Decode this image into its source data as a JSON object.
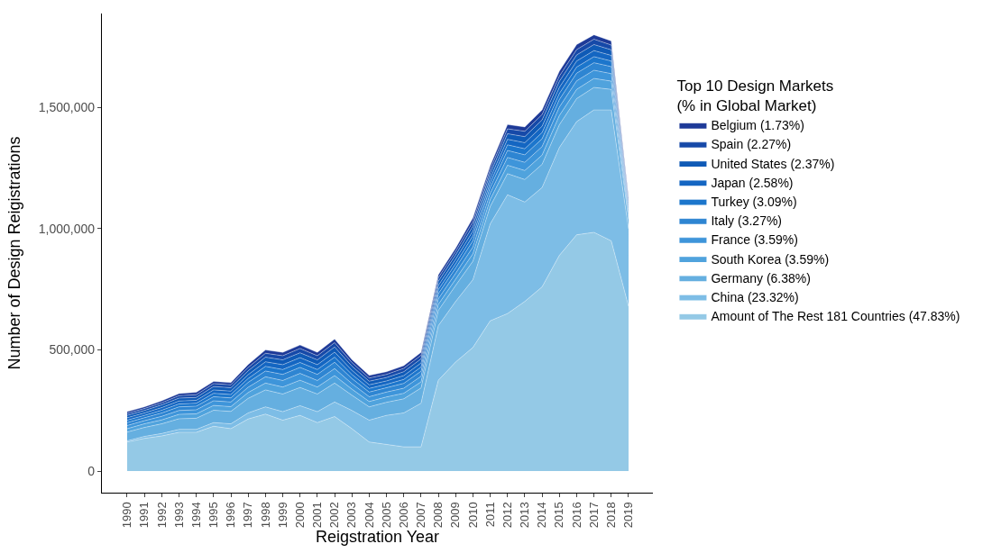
{
  "chart_data": {
    "type": "area",
    "stacked": true,
    "xlabel": "Reigstration Year",
    "ylabel": "Number of Design Reigistrations",
    "legend_title": "Top 10 Design Markets\n(% in Global Market)",
    "legend": "right",
    "marker": "none",
    "categories": [
      "1990",
      "1991",
      "1992",
      "1993",
      "1994",
      "1995",
      "1996",
      "1997",
      "1998",
      "1999",
      "2000",
      "2001",
      "2002",
      "2003",
      "2004",
      "2005",
      "2006",
      "2007",
      "2008",
      "2009",
      "2010",
      "2011",
      "2012",
      "2013",
      "2014",
      "2015",
      "2016",
      "2017",
      "2018",
      "2019"
    ],
    "ylim": [
      -89000,
      1888000
    ],
    "yticks": [
      {
        "value": 0,
        "label": "0"
      },
      {
        "value": 500000,
        "label": "500,000"
      },
      {
        "value": 1000000,
        "label": "1,000,000"
      },
      {
        "value": 1500000,
        "label": "1,500,000"
      }
    ],
    "series": [
      {
        "name": "Amount of The Rest 181 Countries (47.83%)",
        "color": "#94c9e6",
        "values": [
          120000,
          135000,
          145000,
          160000,
          160000,
          185000,
          175000,
          215000,
          235000,
          210000,
          230000,
          200000,
          225000,
          175000,
          120000,
          110000,
          100000,
          100000,
          375000,
          450000,
          510000,
          620000,
          650000,
          700000,
          760000,
          890000,
          975000,
          985000,
          950000,
          680000
        ]
      },
      {
        "name": "China (23.32%)",
        "color": "#7dbde6",
        "values": [
          5000,
          8000,
          10000,
          12000,
          12000,
          15000,
          20000,
          25000,
          30000,
          35000,
          40000,
          45000,
          60000,
          75000,
          90000,
          120000,
          140000,
          180000,
          225000,
          250000,
          280000,
          400000,
          490000,
          410000,
          410000,
          445000,
          467000,
          505000,
          540000,
          320000
        ]
      },
      {
        "name": "Germany (6.38%)",
        "color": "#65afe0",
        "values": [
          36000,
          37000,
          40000,
          44000,
          46000,
          51000,
          51000,
          60000,
          70000,
          73000,
          75000,
          73000,
          78000,
          63000,
          55000,
          54000,
          58000,
          63000,
          63000,
          66000,
          76000,
          72000,
          87000,
          93000,
          96000,
          94000,
          95000,
          93000,
          85000,
          39000
        ]
      },
      {
        "name": "South Korea (3.59%)",
        "color": "#50a3dd",
        "values": [
          14000,
          15000,
          16000,
          18000,
          18000,
          20000,
          20000,
          24000,
          28000,
          29000,
          30000,
          29000,
          31000,
          25000,
          22000,
          22000,
          23000,
          25000,
          25000,
          26000,
          31000,
          29000,
          35000,
          37000,
          38000,
          38000,
          38000,
          37000,
          34000,
          16000
        ]
      },
      {
        "name": "France (3.59%)",
        "color": "#3e95da",
        "values": [
          13000,
          13000,
          15000,
          16000,
          17000,
          19000,
          19000,
          22000,
          26000,
          27000,
          28000,
          27000,
          29000,
          23000,
          20000,
          20000,
          21000,
          23000,
          23000,
          24000,
          28000,
          26000,
          32000,
          34000,
          35000,
          35000,
          35000,
          34000,
          31000,
          14000
        ]
      },
      {
        "name": "Italy (3.27%)",
        "color": "#2e85d2",
        "values": [
          12000,
          12000,
          14000,
          15000,
          15000,
          17000,
          17000,
          20000,
          24000,
          25000,
          25000,
          25000,
          26000,
          21000,
          19000,
          18000,
          20000,
          21000,
          21000,
          22000,
          26000,
          24000,
          29000,
          31000,
          32000,
          31000,
          32000,
          31000,
          29000,
          13000
        ]
      },
      {
        "name": "Turkey (3.09%)",
        "color": "#1c76cc",
        "values": [
          10000,
          10000,
          11000,
          12000,
          12000,
          14000,
          14000,
          16000,
          19000,
          20000,
          20000,
          20000,
          21000,
          17000,
          15000,
          14000,
          16000,
          17000,
          17000,
          18000,
          20000,
          19000,
          23000,
          25000,
          26000,
          25000,
          25000,
          25000,
          23000,
          10000
        ]
      },
      {
        "name": "Japan (2.58%)",
        "color": "#1466c2",
        "values": [
          10000,
          10000,
          11000,
          12000,
          12000,
          14000,
          14000,
          16000,
          19000,
          20000,
          20000,
          20000,
          21000,
          17000,
          15000,
          14000,
          16000,
          17000,
          17000,
          18000,
          20000,
          19000,
          23000,
          25000,
          26000,
          25000,
          25000,
          25000,
          23000,
          10000
        ]
      },
      {
        "name": "United States (2.37%)",
        "color": "#0f5ab6",
        "values": [
          10000,
          10000,
          11000,
          12000,
          12000,
          14000,
          14000,
          16000,
          19000,
          20000,
          20000,
          20000,
          21000,
          17000,
          15000,
          14000,
          16000,
          17000,
          17000,
          18000,
          20000,
          19000,
          23000,
          25000,
          26000,
          25000,
          25000,
          25000,
          23000,
          10000
        ]
      },
      {
        "name": "Spain (2.27%)",
        "color": "#1649a8",
        "values": [
          8000,
          8000,
          9000,
          10000,
          11000,
          12000,
          12000,
          14000,
          16000,
          17000,
          18000,
          17000,
          18000,
          15000,
          13000,
          13000,
          14000,
          15000,
          15000,
          15000,
          18000,
          17000,
          20000,
          22000,
          22000,
          22000,
          22000,
          22000,
          20000,
          9000
        ]
      },
      {
        "name": "Belgium (1.73%)",
        "color": "#1e3a98",
        "values": [
          7000,
          7000,
          8000,
          9000,
          10000,
          9000,
          9000,
          12000,
          14000,
          14000,
          14000,
          14000,
          15000,
          12000,
          11000,
          11000,
          11000,
          12000,
          12000,
          13000,
          16000,
          15000,
          18000,
          18000,
          19000,
          20000,
          21000,
          18000,
          17000,
          9000
        ]
      }
    ]
  }
}
